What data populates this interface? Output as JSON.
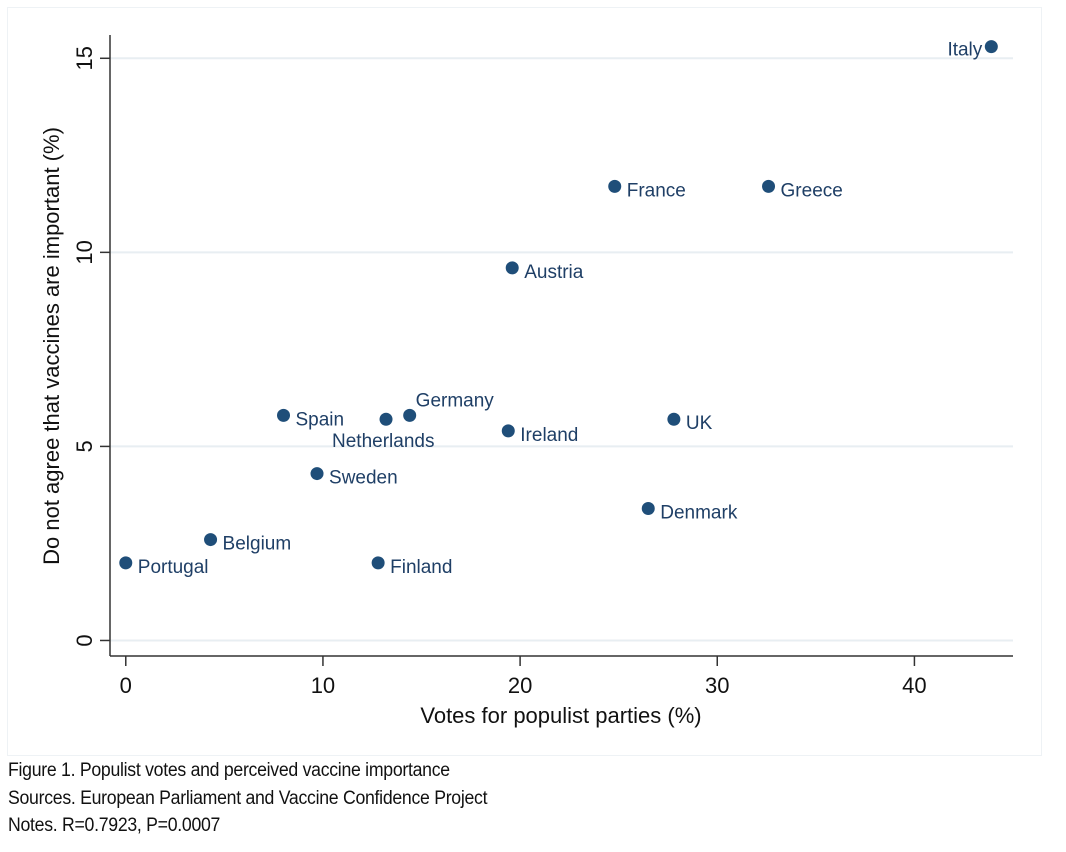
{
  "chart_data": {
    "type": "scatter",
    "title": "",
    "xlabel": "Votes for populist parties (%)",
    "ylabel": "Do not agree that vaccines are important (%)",
    "xlim": [
      -0.8,
      45
    ],
    "ylim": [
      -0.4,
      15.6
    ],
    "xticks": [
      0,
      10,
      20,
      30,
      40
    ],
    "yticks": [
      0,
      5,
      10,
      15
    ],
    "grid": "horizontal",
    "marker_color": "#1f4e79",
    "label_color": "#1f3f66",
    "points": [
      {
        "label": "Portugal",
        "x": 0.0,
        "y": 2.0,
        "pos": "right"
      },
      {
        "label": "Belgium",
        "x": 4.3,
        "y": 2.6,
        "pos": "right"
      },
      {
        "label": "Spain",
        "x": 8.0,
        "y": 5.8,
        "pos": "right"
      },
      {
        "label": "Sweden",
        "x": 9.7,
        "y": 4.3,
        "pos": "right"
      },
      {
        "label": "Finland",
        "x": 12.8,
        "y": 2.0,
        "pos": "right"
      },
      {
        "label": "Netherlands",
        "x": 13.2,
        "y": 5.7,
        "pos": "below"
      },
      {
        "label": "Germany",
        "x": 14.4,
        "y": 5.8,
        "pos": "above-right"
      },
      {
        "label": "Ireland",
        "x": 19.4,
        "y": 5.4,
        "pos": "right"
      },
      {
        "label": "Austria",
        "x": 19.6,
        "y": 9.6,
        "pos": "right"
      },
      {
        "label": "France",
        "x": 24.8,
        "y": 11.7,
        "pos": "right"
      },
      {
        "label": "Denmark",
        "x": 26.5,
        "y": 3.4,
        "pos": "right"
      },
      {
        "label": "UK",
        "x": 27.8,
        "y": 5.7,
        "pos": "right"
      },
      {
        "label": "Greece",
        "x": 32.6,
        "y": 11.7,
        "pos": "right"
      },
      {
        "label": "Italy",
        "x": 43.9,
        "y": 15.3,
        "pos": "left"
      }
    ]
  },
  "caption": {
    "figure": "Figure 1. Populist votes and perceived vaccine importance",
    "sources": "Sources. European Parliament and Vaccine Confidence Project",
    "notes": "Notes. R=0.7923, P=0.0007"
  }
}
